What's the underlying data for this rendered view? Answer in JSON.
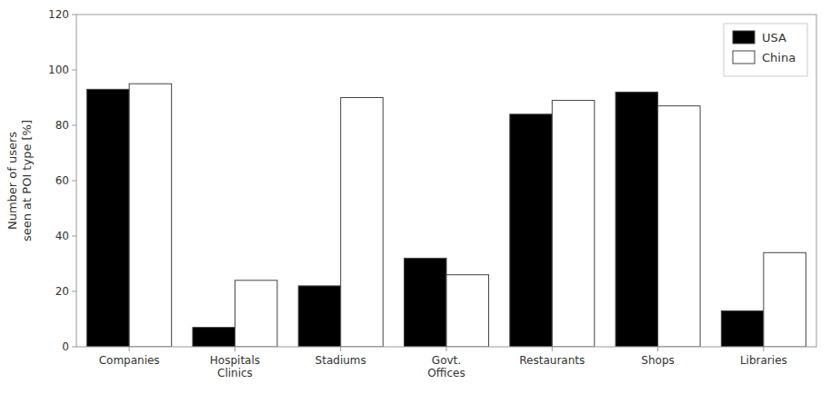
{
  "chart_data": {
    "type": "bar",
    "categories": [
      "Companies",
      "Hospitals\nClinics",
      "Stadiums",
      "Govt.\nOffices",
      "Restaurants",
      "Shops",
      "Libraries"
    ],
    "series": [
      {
        "name": "USA",
        "color": "#000000",
        "values": [
          93,
          7,
          22,
          32,
          84,
          92,
          13
        ]
      },
      {
        "name": "China",
        "color": "#ffffff",
        "values": [
          95,
          24,
          90,
          26,
          89,
          87,
          34
        ]
      }
    ],
    "ylabel": "Number of users\nseen at POI type [%]",
    "ylim": [
      0,
      120
    ],
    "yticks": [
      0,
      20,
      40,
      60,
      80,
      100,
      120
    ],
    "grid": false,
    "legend": "upper right"
  }
}
